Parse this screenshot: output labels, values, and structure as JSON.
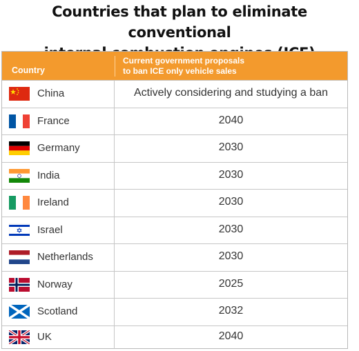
{
  "title": {
    "line1": "Countries that plan to eliminate conventional",
    "line2": "internal combustion engines (ICE)"
  },
  "table": {
    "header": {
      "country": "Country",
      "proposal_line1": "Current government proposals",
      "proposal_line2": "to ban ICE only vehicle sales"
    },
    "rows": [
      {
        "country": "China",
        "value": "Actively considering and studying a ban",
        "flag": "china-flag-icon"
      },
      {
        "country": "France",
        "value": "2040",
        "flag": "france-flag-icon"
      },
      {
        "country": "Germany",
        "value": "2030",
        "flag": "germany-flag-icon"
      },
      {
        "country": "India",
        "value": "2030",
        "flag": "india-flag-icon"
      },
      {
        "country": "Ireland",
        "value": "2030",
        "flag": "ireland-flag-icon"
      },
      {
        "country": "Israel",
        "value": "2030",
        "flag": "israel-flag-icon"
      },
      {
        "country": "Netherlands",
        "value": "2030",
        "flag": "netherlands-flag-icon"
      },
      {
        "country": "Norway",
        "value": "2025",
        "flag": "norway-flag-icon"
      },
      {
        "country": "Scotland",
        "value": "2032",
        "flag": "scotland-flag-icon"
      },
      {
        "country": "UK",
        "value": "2040",
        "flag": "uk-flag-icon"
      }
    ]
  },
  "colors": {
    "header_bg": "#f39a2d",
    "header_text": "#ffffff",
    "border": "#c6c6c6",
    "text": "#333333"
  }
}
